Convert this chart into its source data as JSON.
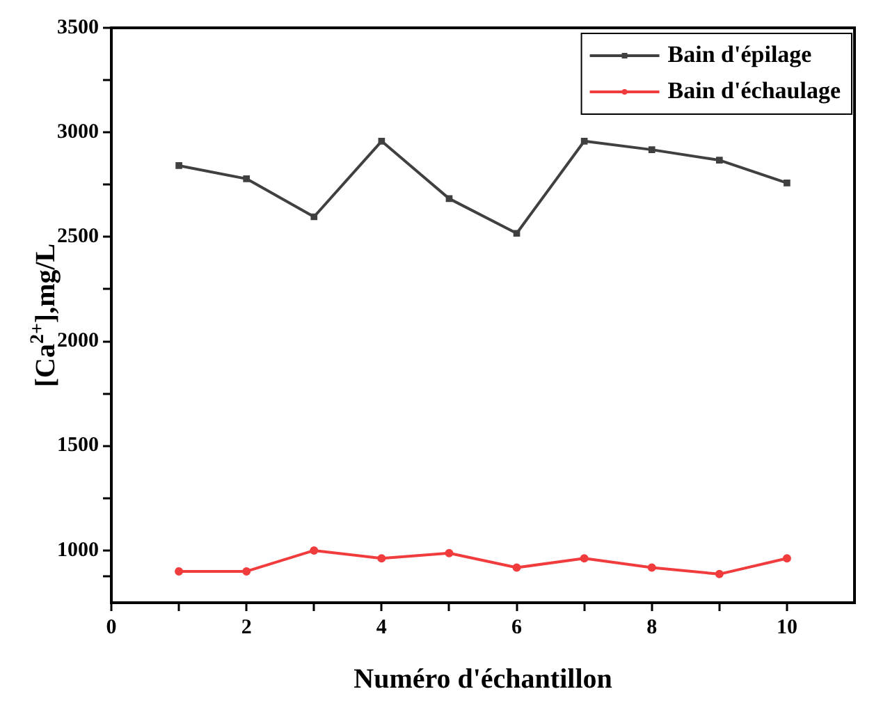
{
  "chart_data": {
    "type": "line",
    "xlabel": "Numéro d'échantillon",
    "ylabel": "[Ca$^{2+}$],mg/L",
    "x": [
      1,
      2,
      3,
      4,
      5,
      6,
      7,
      8,
      9,
      10
    ],
    "series": [
      {
        "name": "Bain d'épilage",
        "color": "#404040",
        "marker": "square",
        "values": [
          2841,
          2778,
          2596,
          2958,
          2683,
          2517,
          2958,
          2917,
          2867,
          2758
        ]
      },
      {
        "name": "Bain d'échaulage",
        "color": "#f03c3c",
        "marker": "circle",
        "values": [
          900,
          900,
          1000,
          962,
          987,
          918,
          962,
          918,
          887,
          962
        ]
      }
    ],
    "xlim": [
      0,
      11
    ],
    "xticks": [
      0,
      {
        "value": 1,
        "label": null
      },
      2,
      {
        "value": 3,
        "label": null
      },
      4,
      {
        "value": 5,
        "label": null
      },
      6,
      {
        "value": 7,
        "label": null
      },
      8,
      {
        "value": 9,
        "label": null
      },
      10
    ],
    "ylim": [
      750,
      3500
    ],
    "yticks": [
      {
        "value": 875,
        "label": null
      },
      1000,
      {
        "value": 1250,
        "label": null
      },
      1500,
      {
        "value": 1750,
        "label": null
      },
      2000,
      {
        "value": 2250,
        "label": null
      },
      2500,
      {
        "value": 2750,
        "label": null
      },
      3000,
      {
        "value": 3250,
        "label": null
      },
      3500
    ],
    "grid": false,
    "legend": "top right",
    "line_style": "solid"
  }
}
